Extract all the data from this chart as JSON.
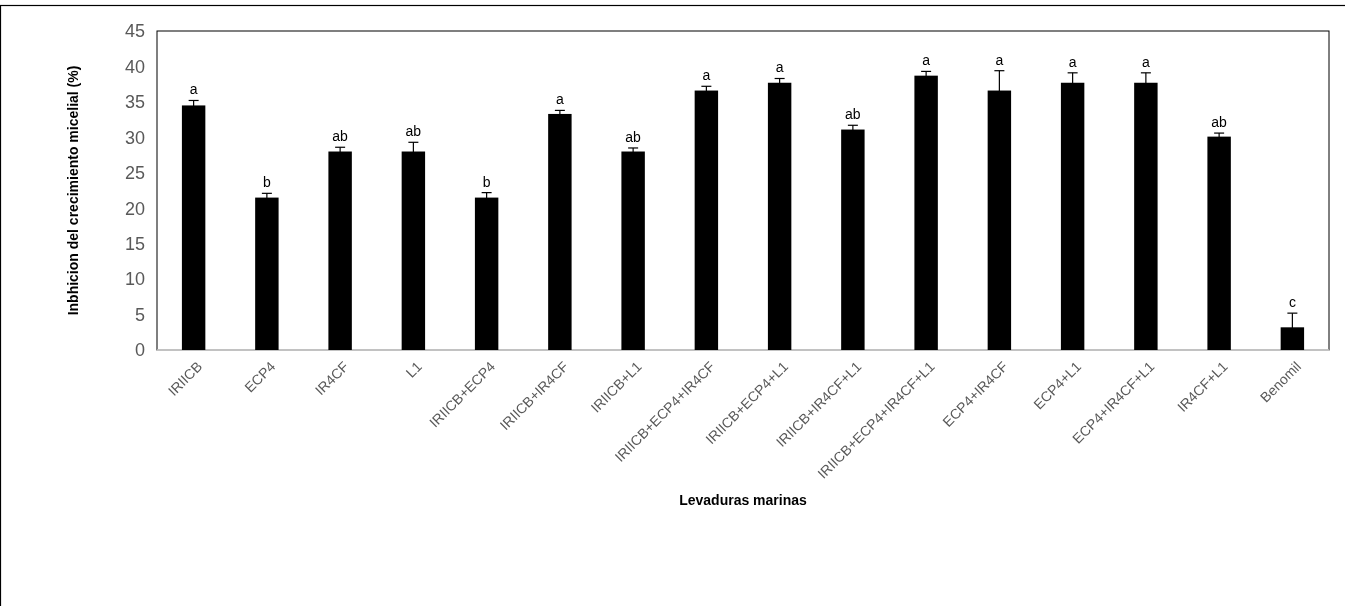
{
  "chart_data": {
    "type": "bar",
    "xlabel": "Levaduras marinas",
    "ylabel": "Inbhicion del crecimiento micelial (%)",
    "categories": [
      "IRIICB",
      "ECP4",
      "IR4CF",
      "L1",
      "IRIICB+ECP4",
      "IRIICB+IR4CF",
      "IRIICB+L1",
      "IRIICB+ECP4+IR4CF",
      "IRIICB+ECP4+L1",
      "IRIICB+IR4CF+L1",
      "IRIICB+ECP4+IR4CF+L1",
      "ECP4+IR4CF",
      "ECP4+L1",
      "ECP4+IR4CF+L1",
      "IR4CF+L1",
      "Benomil"
    ],
    "values": [
      34.5,
      21.5,
      28,
      28,
      21.5,
      33.3,
      28,
      36.6,
      37.7,
      31.1,
      38.7,
      36.6,
      37.7,
      37.7,
      30.1,
      3.2
    ],
    "errors": [
      0.7,
      0.6,
      0.6,
      1.3,
      0.7,
      0.5,
      0.5,
      0.6,
      0.6,
      0.6,
      0.6,
      2.8,
      1.4,
      1.4,
      0.5,
      2.0
    ],
    "color": "#000000",
    "ylim": [
      0,
      45
    ],
    "yticks": [
      0,
      5,
      10,
      15,
      20,
      25,
      30,
      35,
      40,
      45
    ],
    "grid": false,
    "annotations": [
      {
        "text": "a",
        "x": "IRIICB",
        "y": 35.2
      },
      {
        "text": "b",
        "x": "ECP4",
        "y": 22.1
      },
      {
        "text": "ab",
        "x": "IR4CF",
        "y": 28.6
      },
      {
        "text": "ab",
        "x": "L1",
        "y": 29.3
      },
      {
        "text": "b",
        "x": "IRIICB+ECP4",
        "y": 22.2
      },
      {
        "text": "a",
        "x": "IRIICB+IR4CF",
        "y": 33.8
      },
      {
        "text": "ab",
        "x": "IRIICB+L1",
        "y": 28.5
      },
      {
        "text": "a",
        "x": "IRIICB+ECP4+IR4CF",
        "y": 37.2
      },
      {
        "text": "a",
        "x": "IRIICB+ECP4+L1",
        "y": 38.3
      },
      {
        "text": "ab",
        "x": "IRIICB+IR4CF+L1",
        "y": 31.7
      },
      {
        "text": "a",
        "x": "IRIICB+ECP4+IR4CF+L1",
        "y": 39.3
      },
      {
        "text": "a",
        "x": "ECP4+IR4CF",
        "y": 39.4
      },
      {
        "text": "a",
        "x": "ECP4+L1",
        "y": 39.1
      },
      {
        "text": "a",
        "x": "ECP4+IR4CF+L1",
        "y": 39.1
      },
      {
        "text": "ab",
        "x": "IR4CF+L1",
        "y": 30.6
      },
      {
        "text": "c",
        "x": "Benomil",
        "y": 5.2
      }
    ]
  }
}
